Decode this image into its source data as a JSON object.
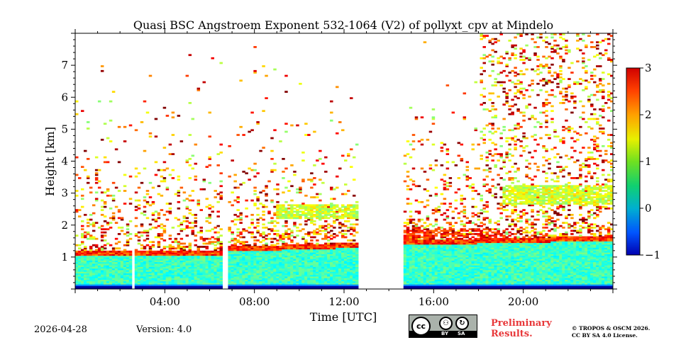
{
  "chart_data": {
    "type": "heatmap",
    "title": "Quasi BSC Angstroem Exponent 532-1064 (V2) of pollyxt_cpv at Mindelo",
    "xlabel": "Time [UTC]",
    "ylabel": "Height [km]",
    "xlim": [
      0,
      24
    ],
    "ylim": [
      0,
      8
    ],
    "x_tick_values": [
      4,
      8,
      12,
      16,
      20
    ],
    "x_tick_labels": [
      "04:00",
      "08:00",
      "12:00",
      "16:00",
      "20:00"
    ],
    "y_tick_values": [
      1,
      2,
      3,
      4,
      5,
      6,
      7
    ],
    "y_tick_labels": [
      "1",
      "2",
      "3",
      "4",
      "5",
      "6",
      "7"
    ],
    "colorbar": {
      "min": -1,
      "max": 3,
      "tick_values": [
        -1,
        0,
        1,
        2,
        3
      ],
      "tick_labels": [
        "−1",
        "0",
        "1",
        "2",
        "3"
      ],
      "colormap": "jet"
    },
    "data_gaps_hours": [
      [
        2.45,
        2.6
      ],
      [
        6.55,
        6.7
      ],
      [
        12.55,
        14.55
      ]
    ],
    "layers": [
      {
        "name": "boundary-layer",
        "time_range": [
          0,
          24
        ],
        "height_range_km": [
          0.0,
          1.3
        ],
        "typical_value": 0.6
      },
      {
        "name": "layer-top-edge",
        "time_range": [
          0,
          24
        ],
        "height_range_km": [
          1.0,
          1.8
        ],
        "typical_value": 2.2
      },
      {
        "name": "elevated-layer-morning",
        "time_range": [
          8.9,
          12.5
        ],
        "height_range_km": [
          2.2,
          2.6
        ],
        "typical_value": 1.3
      },
      {
        "name": "elevated-layer-evening",
        "time_range": [
          19.0,
          24.0
        ],
        "height_range_km": [
          2.6,
          3.2
        ],
        "typical_value": 1.3
      },
      {
        "name": "upper-noise",
        "time_range": [
          0,
          24
        ],
        "height_range_km": [
          1.8,
          8.0
        ],
        "typical_value": 1.8
      }
    ]
  },
  "footer": {
    "date": "2026-04-28",
    "version": "Version: 4.0",
    "preliminary_line1": "Preliminary",
    "preliminary_line2": "Results.",
    "copyright_line1": "© TROPOS & OSCM 2026.",
    "copyright_line2": "CC BY SA 4.0 License.",
    "license_badge": {
      "icons": [
        "cc-icon",
        "by-icon",
        "sa-icon"
      ],
      "by_label": "BY",
      "sa_label": "SA"
    }
  }
}
